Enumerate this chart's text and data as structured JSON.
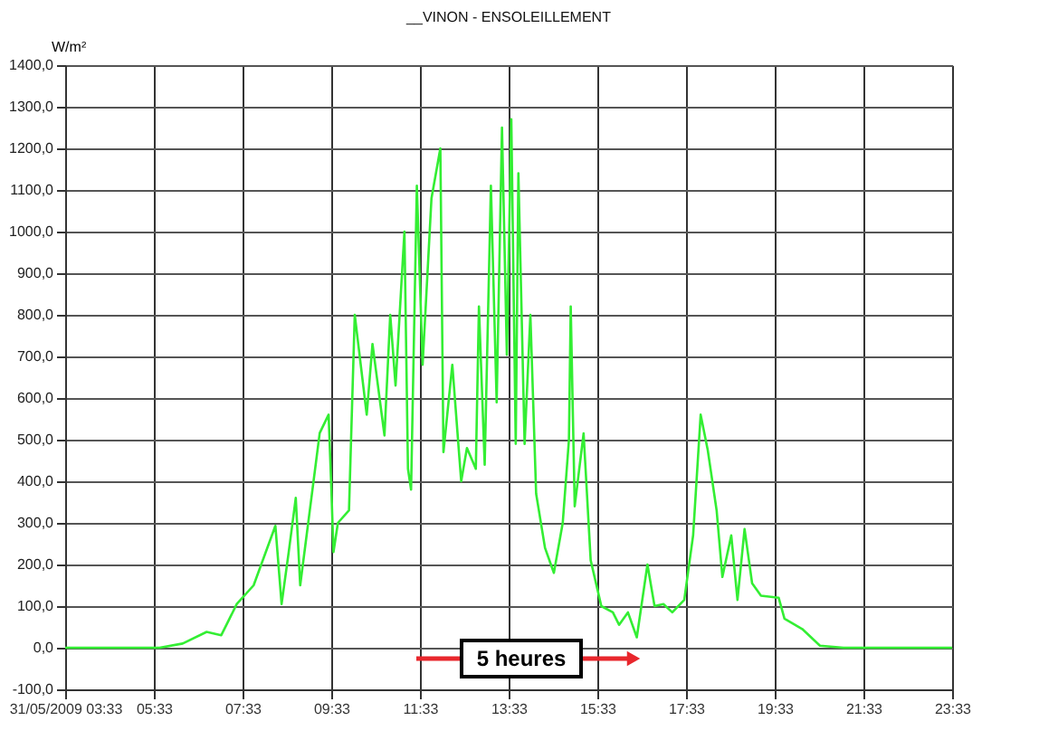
{
  "chart_data": {
    "type": "line",
    "title": "__VINON - ENSOLEILLEMENT",
    "ylabel": "W/m²",
    "x": [
      3.55,
      5.68,
      6.2,
      6.74,
      7.07,
      7.42,
      7.8,
      8.29,
      8.43,
      8.59,
      8.75,
      8.85,
      9.29,
      9.49,
      9.55,
      9.6,
      9.7,
      9.95,
      10.08,
      10.35,
      10.48,
      10.75,
      10.88,
      11.0,
      11.2,
      11.28,
      11.35,
      11.48,
      11.61,
      11.81,
      12.01,
      12.08,
      12.28,
      12.48,
      12.61,
      12.81,
      12.88,
      13.01,
      13.15,
      13.28,
      13.4,
      13.51,
      13.61,
      13.71,
      13.77,
      13.91,
      14.04,
      14.17,
      14.37,
      14.57,
      14.77,
      14.91,
      14.95,
      15.04,
      15.24,
      15.4,
      15.64,
      15.9,
      16.04,
      16.24,
      16.44,
      16.68,
      16.84,
      17.04,
      17.24,
      17.51,
      17.71,
      17.88,
      18.04,
      18.24,
      18.37,
      18.57,
      18.71,
      18.87,
      19.04,
      19.24,
      19.64,
      19.77,
      20.17,
      20.57,
      21.1,
      23.55
    ],
    "series": [
      {
        "color": "#33ee33",
        "values": [
          0,
          0,
          10,
          38,
          30,
          105,
          150,
          293,
          105,
          229,
          360,
          150,
          516,
          560,
          390,
          230,
          300,
          330,
          800,
          560,
          730,
          510,
          800,
          630,
          1000,
          430,
          380,
          1110,
          680,
          1080,
          1200,
          470,
          680,
          400,
          480,
          430,
          820,
          440,
          1110,
          590,
          1250,
          704,
          1270,
          490,
          1140,
          490,
          800,
          370,
          240,
          180,
          300,
          500,
          820,
          340,
          515,
          210,
          100,
          85,
          55,
          85,
          25,
          200,
          100,
          105,
          85,
          115,
          270,
          560,
          475,
          330,
          170,
          270,
          115,
          285,
          155,
          125,
          120,
          70,
          45,
          5,
          0,
          0
        ]
      }
    ],
    "xlim": [
      3.55,
      23.55
    ],
    "xticks": [
      {
        "value": 3.55,
        "label": "31/05/2009 03:33"
      },
      {
        "value": 5.55,
        "label": "05:33"
      },
      {
        "value": 7.55,
        "label": "07:33"
      },
      {
        "value": 9.55,
        "label": "09:33"
      },
      {
        "value": 11.55,
        "label": "11:33"
      },
      {
        "value": 13.55,
        "label": "13:33"
      },
      {
        "value": 15.55,
        "label": "15:33"
      },
      {
        "value": 17.55,
        "label": "17:33"
      },
      {
        "value": 19.55,
        "label": "19:33"
      },
      {
        "value": 21.55,
        "label": "21:33"
      },
      {
        "value": 23.55,
        "label": "23:33"
      }
    ],
    "ylim": [
      -100,
      1400
    ],
    "yticks": [
      {
        "value": -100,
        "label": "-100,0"
      },
      {
        "value": 0,
        "label": "0,0"
      },
      {
        "value": 100,
        "label": "100,0"
      },
      {
        "value": 200,
        "label": "200,0"
      },
      {
        "value": 300,
        "label": "300,0"
      },
      {
        "value": 400,
        "label": "400,0"
      },
      {
        "value": 500,
        "label": "500,0"
      },
      {
        "value": 600,
        "label": "600,0"
      },
      {
        "value": 700,
        "label": "700,0"
      },
      {
        "value": 800,
        "label": "800,0"
      },
      {
        "value": 900,
        "label": "900,0"
      },
      {
        "value": 1000,
        "label": "1000,0"
      },
      {
        "value": 1100,
        "label": "1100,0"
      },
      {
        "value": 1200,
        "label": "1200,0"
      },
      {
        "value": 1300,
        "label": "1300,0"
      },
      {
        "value": 1400,
        "label": "1400,0"
      }
    ],
    "annotations": [
      "5 heures"
    ],
    "grid": true,
    "marker": "none",
    "line_style": "solid"
  }
}
